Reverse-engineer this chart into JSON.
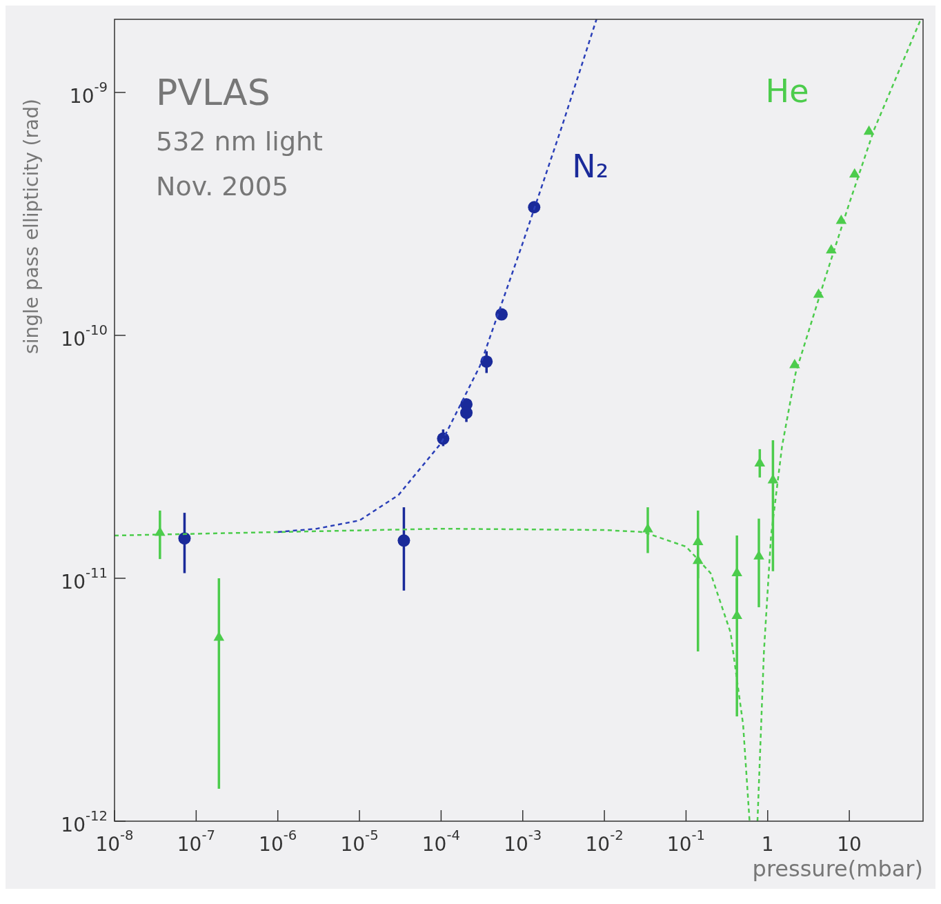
{
  "chart_data": {
    "type": "scatter",
    "xlabel": "pressure(mbar)",
    "ylabel": "single pass ellipticity (rad)",
    "log": "xy",
    "grid": false,
    "legend": false,
    "annotations": [
      "PVLAS",
      "532 nm light",
      "Nov. 2005"
    ],
    "xlim": [
      1e-08,
      80
    ],
    "ylim": [
      1e-12,
      2e-09
    ],
    "xticks": [
      {
        "value": 1e-08,
        "label": "10$^{-8}$"
      },
      {
        "value": 1e-07,
        "label": "10$^{-7}$"
      },
      {
        "value": 1e-06,
        "label": "10$^{-6}$"
      },
      {
        "value": 1e-05,
        "label": "10$^{-5}$"
      },
      {
        "value": 0.0001,
        "label": "10$^{-4}$"
      },
      {
        "value": 0.001,
        "label": "10$^{-3}$"
      },
      {
        "value": 0.01,
        "label": "10$^{-2}$"
      },
      {
        "value": 0.1,
        "label": "10$^{-1}$"
      },
      1,
      10
    ],
    "yticks": [
      {
        "value": 1e-12,
        "label": "10$^{-12}$"
      },
      {
        "value": 1e-11,
        "label": "10$^{-11}$"
      },
      {
        "value": 1e-10,
        "label": "10$^{-10}$"
      },
      {
        "value": 1e-09,
        "label": "10$^{-9}$"
      }
    ],
    "series": [
      {
        "type": "line",
        "color": "#2a3fb8",
        "line_style": "dashed",
        "marker": "none",
        "x": [
          1e-06,
          3e-06,
          1e-05,
          3e-05,
          0.0001,
          0.0003,
          0.001,
          0.003,
          0.008
        ],
        "values": [
          1.55e-11,
          1.6e-11,
          1.73e-11,
          2.2e-11,
          3.6e-11,
          7.5e-11,
          2.4e-10,
          7.2e-10,
          2e-09
        ]
      },
      {
        "type": "line",
        "color": "#4ccc4c",
        "line_style": "dashed",
        "marker": "none",
        "x": [
          1e-08,
          1e-06,
          0.0001,
          0.01,
          0.03,
          0.1,
          0.2,
          0.35,
          0.5,
          0.6,
          0.68,
          0.75,
          0.9,
          1.1,
          1.5,
          2.2,
          5,
          10,
          20,
          75
        ],
        "values": [
          1.5e-11,
          1.55e-11,
          1.6e-11,
          1.58e-11,
          1.55e-11,
          1.35e-11,
          1.05e-11,
          6e-12,
          2.5e-12,
          1e-12,
          null,
          1e-12,
          5e-12,
          1.5e-11,
          3.5e-11,
          7e-11,
          1.7e-10,
          3.5e-10,
          7e-10,
          2e-09
        ]
      },
      {
        "name": "N₂",
        "color": "#1a2a9a",
        "marker": "circle",
        "x": [
          7.2e-08,
          3.5e-05,
          0.000106,
          0.000204,
          0.000204,
          0.00036,
          0.00055,
          0.00138
        ],
        "values": [
          1.46e-11,
          1.43e-11,
          3.76e-11,
          5.2e-11,
          4.8e-11,
          7.8e-11,
          1.22e-10,
          3.37e-10
        ],
        "errors": [
          [
            1.05e-11,
            1.86e-11
          ],
          [
            8.9e-12,
            1.96e-11
          ],
          [
            3.5e-11,
            4.1e-11
          ],
          null,
          [
            4.4e-11,
            4.8e-11
          ],
          [
            7e-11,
            8.6e-11
          ],
          null,
          null
        ]
      },
      {
        "name": "He",
        "color": "#4ccc4c",
        "marker": "triangle",
        "x": [
          3.6e-08,
          1.9e-07,
          0.034,
          0.14,
          0.14,
          0.42,
          0.42,
          0.78,
          0.8,
          1.16,
          2.14,
          4.2,
          6,
          7.95,
          11.6,
          17.4
        ],
        "values": [
          1.54e-11,
          5.7e-12,
          1.59e-11,
          1.41e-11,
          1.18e-11,
          1.05e-11,
          7e-12,
          1.23e-11,
          2.97e-11,
          2.53e-11,
          7.55e-11,
          1.47e-10,
          2.24e-10,
          2.96e-10,
          4.6e-10,
          6.9e-10
        ],
        "errors": [
          [
            1.2e-11,
            1.9e-11
          ],
          [
            1.36e-12,
            1e-11
          ],
          [
            1.27e-11,
            1.96e-11
          ],
          [
            1e-11,
            1.9e-11
          ],
          [
            5e-12,
            1.18e-11
          ],
          [
            7e-12,
            1.5e-11
          ],
          [
            2.7e-12,
            1e-11
          ],
          [
            7.6e-12,
            1.76e-11
          ],
          [
            2.6e-11,
            3.4e-11
          ],
          [
            1.07e-11,
            3.7e-11
          ],
          null,
          null,
          null,
          null,
          null,
          null
        ]
      }
    ]
  }
}
